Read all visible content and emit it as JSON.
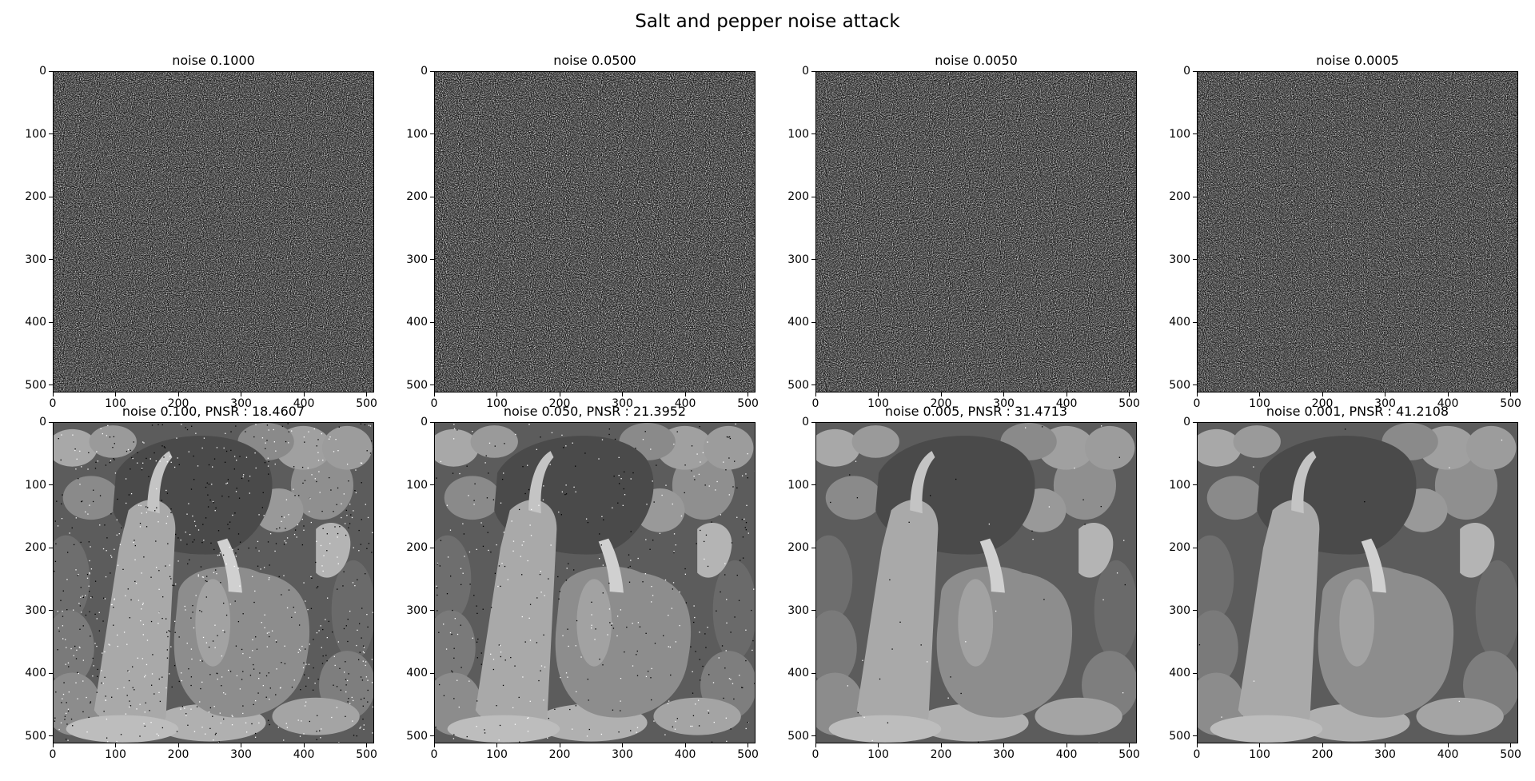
{
  "figure": {
    "suptitle": "Salt and pepper noise attack"
  },
  "chart_data": [
    {
      "type": "heatmap",
      "title": "noise 0.1000",
      "content": "noise-pattern",
      "xlim": [
        0,
        512
      ],
      "ylim": [
        512,
        0
      ],
      "xticks": [
        0,
        100,
        200,
        300,
        400,
        500
      ],
      "yticks": [
        0,
        100,
        200,
        300,
        400,
        500
      ]
    },
    {
      "type": "heatmap",
      "title": "noise 0.0500",
      "content": "noise-pattern",
      "xlim": [
        0,
        512
      ],
      "ylim": [
        512,
        0
      ],
      "xticks": [
        0,
        100,
        200,
        300,
        400,
        500
      ],
      "yticks": [
        0,
        100,
        200,
        300,
        400,
        500
      ]
    },
    {
      "type": "heatmap",
      "title": "noise 0.0050",
      "content": "noise-pattern",
      "xlim": [
        0,
        512
      ],
      "ylim": [
        512,
        0
      ],
      "xticks": [
        0,
        100,
        200,
        300,
        400,
        500
      ],
      "yticks": [
        0,
        100,
        200,
        300,
        400,
        500
      ]
    },
    {
      "type": "heatmap",
      "title": "noise 0.0005",
      "content": "noise-pattern",
      "xlim": [
        0,
        512
      ],
      "ylim": [
        512,
        0
      ],
      "xticks": [
        0,
        100,
        200,
        300,
        400,
        500
      ],
      "yticks": [
        0,
        100,
        200,
        300,
        400,
        500
      ]
    },
    {
      "type": "heatmap",
      "title": "noise 0.100, PNSR : 18.4607",
      "content": "grayscale-peppers-image",
      "noise_density": 0.1,
      "xlim": [
        0,
        512
      ],
      "ylim": [
        512,
        0
      ],
      "xticks": [
        0,
        100,
        200,
        300,
        400,
        500
      ],
      "yticks": [
        0,
        100,
        200,
        300,
        400,
        500
      ]
    },
    {
      "type": "heatmap",
      "title": "noise 0.050, PNSR : 21.3952",
      "content": "grayscale-peppers-image",
      "noise_density": 0.05,
      "xlim": [
        0,
        512
      ],
      "ylim": [
        512,
        0
      ],
      "xticks": [
        0,
        100,
        200,
        300,
        400,
        500
      ],
      "yticks": [
        0,
        100,
        200,
        300,
        400,
        500
      ]
    },
    {
      "type": "heatmap",
      "title": "noise 0.005, PNSR : 31.4713",
      "content": "grayscale-peppers-image",
      "noise_density": 0.005,
      "xlim": [
        0,
        512
      ],
      "ylim": [
        512,
        0
      ],
      "xticks": [
        0,
        100,
        200,
        300,
        400,
        500
      ],
      "yticks": [
        0,
        100,
        200,
        300,
        400,
        500
      ]
    },
    {
      "type": "heatmap",
      "title": "noise 0.001, PNSR : 41.2108",
      "content": "grayscale-peppers-image",
      "noise_density": 0.001,
      "xlim": [
        0,
        512
      ],
      "ylim": [
        512,
        0
      ],
      "xticks": [
        0,
        100,
        200,
        300,
        400,
        500
      ],
      "yticks": [
        0,
        100,
        200,
        300,
        400,
        500
      ]
    }
  ]
}
